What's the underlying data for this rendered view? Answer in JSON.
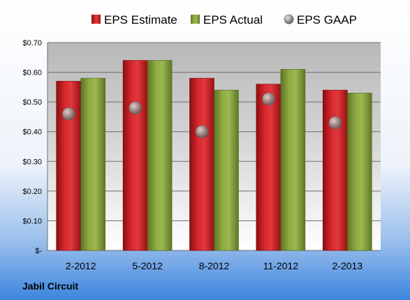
{
  "company": "Jabil Circuit",
  "colors": {
    "estimate": "#c8181c",
    "actual": "#7f9a35",
    "gaap": "#8e8e8e",
    "background_top": "#ffffff",
    "background_bottom": "#3c85de"
  },
  "chart_data": {
    "type": "bar",
    "title": "",
    "categories": [
      "2-2012",
      "5-2012",
      "8-2012",
      "11-2012",
      "2-2013"
    ],
    "series": [
      {
        "name": "EPS Estimate",
        "kind": "bar",
        "values": [
          0.57,
          0.64,
          0.58,
          0.56,
          0.54
        ]
      },
      {
        "name": "EPS Actual",
        "kind": "bar",
        "values": [
          0.58,
          0.64,
          0.54,
          0.61,
          0.53
        ]
      },
      {
        "name": "EPS GAAP",
        "kind": "marker",
        "values": [
          0.46,
          0.48,
          0.4,
          0.51,
          0.43
        ]
      }
    ],
    "ylim": [
      0,
      0.7
    ],
    "yticks": [
      0,
      0.1,
      0.2,
      0.3,
      0.4,
      0.5,
      0.6,
      0.7
    ],
    "ytick_labels": [
      "$-",
      "$0.10",
      "$0.20",
      "$0.30",
      "$0.40",
      "$0.50",
      "$0.60",
      "$0.70"
    ],
    "grid": true,
    "legend_position": "top"
  }
}
